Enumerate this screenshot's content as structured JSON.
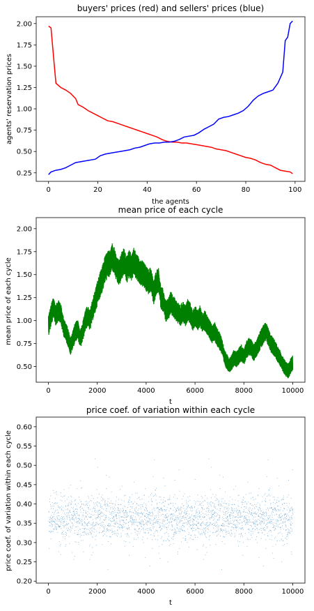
{
  "chart_data": [
    {
      "type": "line",
      "title": "buyers' prices (red) and sellers' prices (blue)",
      "xlabel": "the agents",
      "ylabel": "agents' reservation prices",
      "xlim": [
        -5,
        104
      ],
      "ylim": [
        0.15,
        2.08
      ],
      "xticks": [
        0,
        20,
        40,
        60,
        80,
        100
      ],
      "yticks": [
        0.25,
        0.5,
        0.75,
        1.0,
        1.25,
        1.5,
        1.75,
        2.0
      ],
      "xticklabels": [
        "0",
        "20",
        "40",
        "60",
        "80",
        "100"
      ],
      "yticklabels": [
        "0.25",
        "0.50",
        "0.75",
        "1.00",
        "1.25",
        "1.50",
        "1.75",
        "2.00"
      ],
      "series": [
        {
          "color": "#ff0000",
          "points": [
            [
              0,
              1.97
            ],
            [
              1,
              1.95
            ],
            [
              2,
              1.62
            ],
            [
              3,
              1.3
            ],
            [
              5,
              1.25
            ],
            [
              7,
              1.22
            ],
            [
              9,
              1.18
            ],
            [
              11,
              1.12
            ],
            [
              12,
              1.05
            ],
            [
              14,
              1.02
            ],
            [
              16,
              0.98
            ],
            [
              18,
              0.95
            ],
            [
              20,
              0.92
            ],
            [
              22,
              0.89
            ],
            [
              24,
              0.86
            ],
            [
              26,
              0.85
            ],
            [
              28,
              0.83
            ],
            [
              30,
              0.81
            ],
            [
              32,
              0.79
            ],
            [
              34,
              0.77
            ],
            [
              36,
              0.75
            ],
            [
              38,
              0.73
            ],
            [
              40,
              0.71
            ],
            [
              42,
              0.69
            ],
            [
              44,
              0.67
            ],
            [
              46,
              0.64
            ],
            [
              48,
              0.62
            ],
            [
              50,
              0.61
            ],
            [
              52,
              0.61
            ],
            [
              54,
              0.6
            ],
            [
              56,
              0.6
            ],
            [
              58,
              0.59
            ],
            [
              60,
              0.58
            ],
            [
              62,
              0.57
            ],
            [
              64,
              0.56
            ],
            [
              66,
              0.55
            ],
            [
              68,
              0.53
            ],
            [
              70,
              0.52
            ],
            [
              72,
              0.51
            ],
            [
              74,
              0.49
            ],
            [
              76,
              0.47
            ],
            [
              78,
              0.45
            ],
            [
              80,
              0.43
            ],
            [
              82,
              0.42
            ],
            [
              84,
              0.4
            ],
            [
              86,
              0.37
            ],
            [
              88,
              0.35
            ],
            [
              90,
              0.34
            ],
            [
              92,
              0.31
            ],
            [
              94,
              0.28
            ],
            [
              96,
              0.27
            ],
            [
              98,
              0.26
            ],
            [
              99,
              0.24
            ]
          ]
        },
        {
          "color": "#0000ff",
          "points": [
            [
              0,
              0.23
            ],
            [
              1,
              0.26
            ],
            [
              3,
              0.28
            ],
            [
              5,
              0.29
            ],
            [
              7,
              0.31
            ],
            [
              9,
              0.34
            ],
            [
              11,
              0.37
            ],
            [
              13,
              0.38
            ],
            [
              15,
              0.39
            ],
            [
              17,
              0.4
            ],
            [
              19,
              0.41
            ],
            [
              21,
              0.45
            ],
            [
              23,
              0.47
            ],
            [
              25,
              0.48
            ],
            [
              27,
              0.49
            ],
            [
              29,
              0.5
            ],
            [
              31,
              0.51
            ],
            [
              33,
              0.52
            ],
            [
              35,
              0.54
            ],
            [
              37,
              0.55
            ],
            [
              39,
              0.57
            ],
            [
              41,
              0.59
            ],
            [
              43,
              0.6
            ],
            [
              45,
              0.6
            ],
            [
              47,
              0.61
            ],
            [
              49,
              0.61
            ],
            [
              51,
              0.62
            ],
            [
              53,
              0.64
            ],
            [
              55,
              0.67
            ],
            [
              57,
              0.68
            ],
            [
              59,
              0.69
            ],
            [
              61,
              0.72
            ],
            [
              63,
              0.76
            ],
            [
              65,
              0.79
            ],
            [
              67,
              0.82
            ],
            [
              69,
              0.88
            ],
            [
              71,
              0.9
            ],
            [
              73,
              0.91
            ],
            [
              75,
              0.93
            ],
            [
              77,
              0.95
            ],
            [
              79,
              0.98
            ],
            [
              81,
              1.03
            ],
            [
              83,
              1.1
            ],
            [
              85,
              1.15
            ],
            [
              87,
              1.18
            ],
            [
              89,
              1.2
            ],
            [
              91,
              1.22
            ],
            [
              93,
              1.3
            ],
            [
              95,
              1.43
            ],
            [
              96,
              1.8
            ],
            [
              97,
              1.84
            ],
            [
              98,
              2.0
            ],
            [
              99,
              2.03
            ]
          ]
        }
      ]
    },
    {
      "type": "line",
      "title": "mean price of each cycle",
      "xlabel": "t",
      "ylabel": "mean price of each cycle",
      "xlim": [
        -500,
        10500
      ],
      "ylim": [
        0.33,
        2.12
      ],
      "xticks": [
        0,
        2000,
        4000,
        6000,
        8000,
        10000
      ],
      "yticks": [
        0.5,
        0.75,
        1.0,
        1.25,
        1.5,
        1.75,
        2.0
      ],
      "xticklabels": [
        "0",
        "2000",
        "4000",
        "6000",
        "8000",
        "10000"
      ],
      "yticklabels": [
        "0.50",
        "0.75",
        "1.00",
        "1.25",
        "1.50",
        "1.75",
        "2.00"
      ],
      "series": [
        {
          "color": "#008000",
          "points": [
            [
              0,
              0.95
            ],
            [
              100,
              1.05
            ],
            [
              200,
              1.15
            ],
            [
              300,
              1.05
            ],
            [
              400,
              1.12
            ],
            [
              500,
              1.08
            ],
            [
              600,
              0.95
            ],
            [
              700,
              0.88
            ],
            [
              800,
              0.82
            ],
            [
              900,
              0.72
            ],
            [
              1000,
              0.8
            ],
            [
              1100,
              0.88
            ],
            [
              1200,
              0.9
            ],
            [
              1300,
              0.8
            ],
            [
              1400,
              0.88
            ],
            [
              1500,
              1.0
            ],
            [
              1600,
              1.05
            ],
            [
              1700,
              1.0
            ],
            [
              1800,
              1.12
            ],
            [
              1900,
              1.2
            ],
            [
              2000,
              1.3
            ],
            [
              2100,
              1.38
            ],
            [
              2200,
              1.45
            ],
            [
              2300,
              1.55
            ],
            [
              2400,
              1.6
            ],
            [
              2500,
              1.62
            ],
            [
              2600,
              1.7
            ],
            [
              2700,
              1.65
            ],
            [
              2800,
              1.55
            ],
            [
              2900,
              1.52
            ],
            [
              3000,
              1.6
            ],
            [
              3100,
              1.65
            ],
            [
              3200,
              1.55
            ],
            [
              3300,
              1.62
            ],
            [
              3400,
              1.58
            ],
            [
              3500,
              1.65
            ],
            [
              3600,
              1.58
            ],
            [
              3700,
              1.55
            ],
            [
              3800,
              1.52
            ],
            [
              3900,
              1.5
            ],
            [
              4000,
              1.45
            ],
            [
              4100,
              1.42
            ],
            [
              4200,
              1.45
            ],
            [
              4300,
              1.3
            ],
            [
              4400,
              1.4
            ],
            [
              4500,
              1.45
            ],
            [
              4600,
              1.25
            ],
            [
              4700,
              1.22
            ],
            [
              4800,
              1.1
            ],
            [
              4900,
              1.12
            ],
            [
              5000,
              1.2
            ],
            [
              5100,
              1.15
            ],
            [
              5200,
              1.12
            ],
            [
              5300,
              1.08
            ],
            [
              5400,
              1.05
            ],
            [
              5500,
              1.1
            ],
            [
              5600,
              1.05
            ],
            [
              5700,
              1.12
            ],
            [
              5800,
              1.08
            ],
            [
              5900,
              1.0
            ],
            [
              6000,
              1.05
            ],
            [
              6100,
              1.0
            ],
            [
              6200,
              1.05
            ],
            [
              6300,
              0.98
            ],
            [
              6400,
              1.0
            ],
            [
              6500,
              0.95
            ],
            [
              6600,
              0.9
            ],
            [
              6700,
              0.85
            ],
            [
              6800,
              0.88
            ],
            [
              6900,
              0.82
            ],
            [
              7000,
              0.78
            ],
            [
              7100,
              0.72
            ],
            [
              7200,
              0.6
            ],
            [
              7300,
              0.55
            ],
            [
              7400,
              0.52
            ],
            [
              7500,
              0.55
            ],
            [
              7600,
              0.6
            ],
            [
              7700,
              0.58
            ],
            [
              7800,
              0.62
            ],
            [
              7900,
              0.65
            ],
            [
              8000,
              0.6
            ],
            [
              8100,
              0.68
            ],
            [
              8200,
              0.72
            ],
            [
              8300,
              0.7
            ],
            [
              8400,
              0.65
            ],
            [
              8500,
              0.7
            ],
            [
              8600,
              0.75
            ],
            [
              8700,
              0.8
            ],
            [
              8800,
              0.85
            ],
            [
              8900,
              0.88
            ],
            [
              9000,
              0.82
            ],
            [
              9100,
              0.75
            ],
            [
              9200,
              0.72
            ],
            [
              9300,
              0.68
            ],
            [
              9400,
              0.62
            ],
            [
              9500,
              0.58
            ],
            [
              9600,
              0.52
            ],
            [
              9700,
              0.48
            ],
            [
              9800,
              0.45
            ],
            [
              9900,
              0.5
            ],
            [
              10000,
              0.55
            ]
          ]
        }
      ]
    },
    {
      "type": "scatter",
      "title": "price coef. of variation within each cycle",
      "xlabel": "t",
      "ylabel": "price coef. of variation within each cycle",
      "xlim": [
        -500,
        10500
      ],
      "ylim": [
        0.195,
        0.625
      ],
      "xticks": [
        0,
        2000,
        4000,
        6000,
        8000,
        10000
      ],
      "yticks": [
        0.2,
        0.25,
        0.3,
        0.35,
        0.4,
        0.45,
        0.5,
        0.55,
        0.6
      ],
      "xticklabels": [
        "0",
        "2000",
        "4000",
        "6000",
        "8000",
        "10000"
      ],
      "yticklabels": [
        "0.20",
        "0.25",
        "0.30",
        "0.35",
        "0.40",
        "0.45",
        "0.50",
        "0.55",
        "0.60"
      ],
      "series": [
        {
          "color": "#1f77b4",
          "x_range": [
            0,
            10000
          ],
          "y_center": 0.365,
          "y_min": 0.22,
          "y_max": 0.61
        }
      ]
    }
  ]
}
